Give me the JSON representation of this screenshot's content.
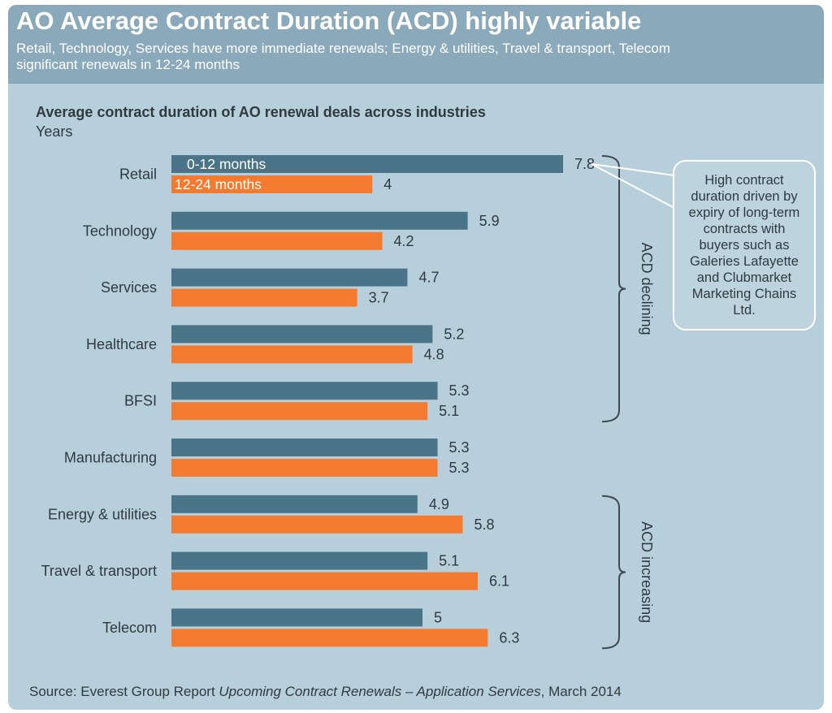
{
  "header": {
    "title": "AO Average Contract Duration (ACD) highly variable",
    "subtitle": "Retail, Technology, Services have more immediate renewals; Energy & utilities, Travel & transport, Telecom significant renewals in 12-24 months"
  },
  "colors": {
    "series_0_12": "#4a7588",
    "series_12_24": "#f47a30",
    "background": "#b7cfdb",
    "header": "#8aaabb"
  },
  "chart_data": {
    "type": "bar",
    "orientation": "horizontal",
    "title": "Average contract duration of AO renewal deals across industries",
    "unit_label": "Years",
    "categories": [
      "Retail",
      "Technology",
      "Services",
      "Healthcare",
      "BFSI",
      "Manufacturing",
      "Energy & utilities",
      "Travel & transport",
      "Telecom"
    ],
    "series": [
      {
        "name": "0-12 months",
        "values": [
          7.8,
          5.9,
          4.7,
          5.2,
          5.3,
          5.3,
          4.9,
          5.1,
          5
        ]
      },
      {
        "name": "12-24 months",
        "values": [
          4,
          4.2,
          3.7,
          4.8,
          5.1,
          5.3,
          5.8,
          6.1,
          6.3
        ]
      }
    ],
    "xlim": [
      0,
      8
    ],
    "legend": "inside-bars-first-category",
    "annotations": {
      "brackets": [
        {
          "label": "ACD declining",
          "from": "Retail",
          "to": "BFSI"
        },
        {
          "label": "ACD increasing",
          "from": "Energy & utilities",
          "to": "Telecom"
        }
      ],
      "callout": "High contract duration driven by expiry of long-term contracts with buyers such as Galeries Lafayette and Clubmarket Marketing Chains Ltd."
    }
  },
  "source": {
    "prefix": "Source: Everest Group Report ",
    "report": "Upcoming Contract Renewals – Application Services",
    "suffix": ", March 2014"
  }
}
